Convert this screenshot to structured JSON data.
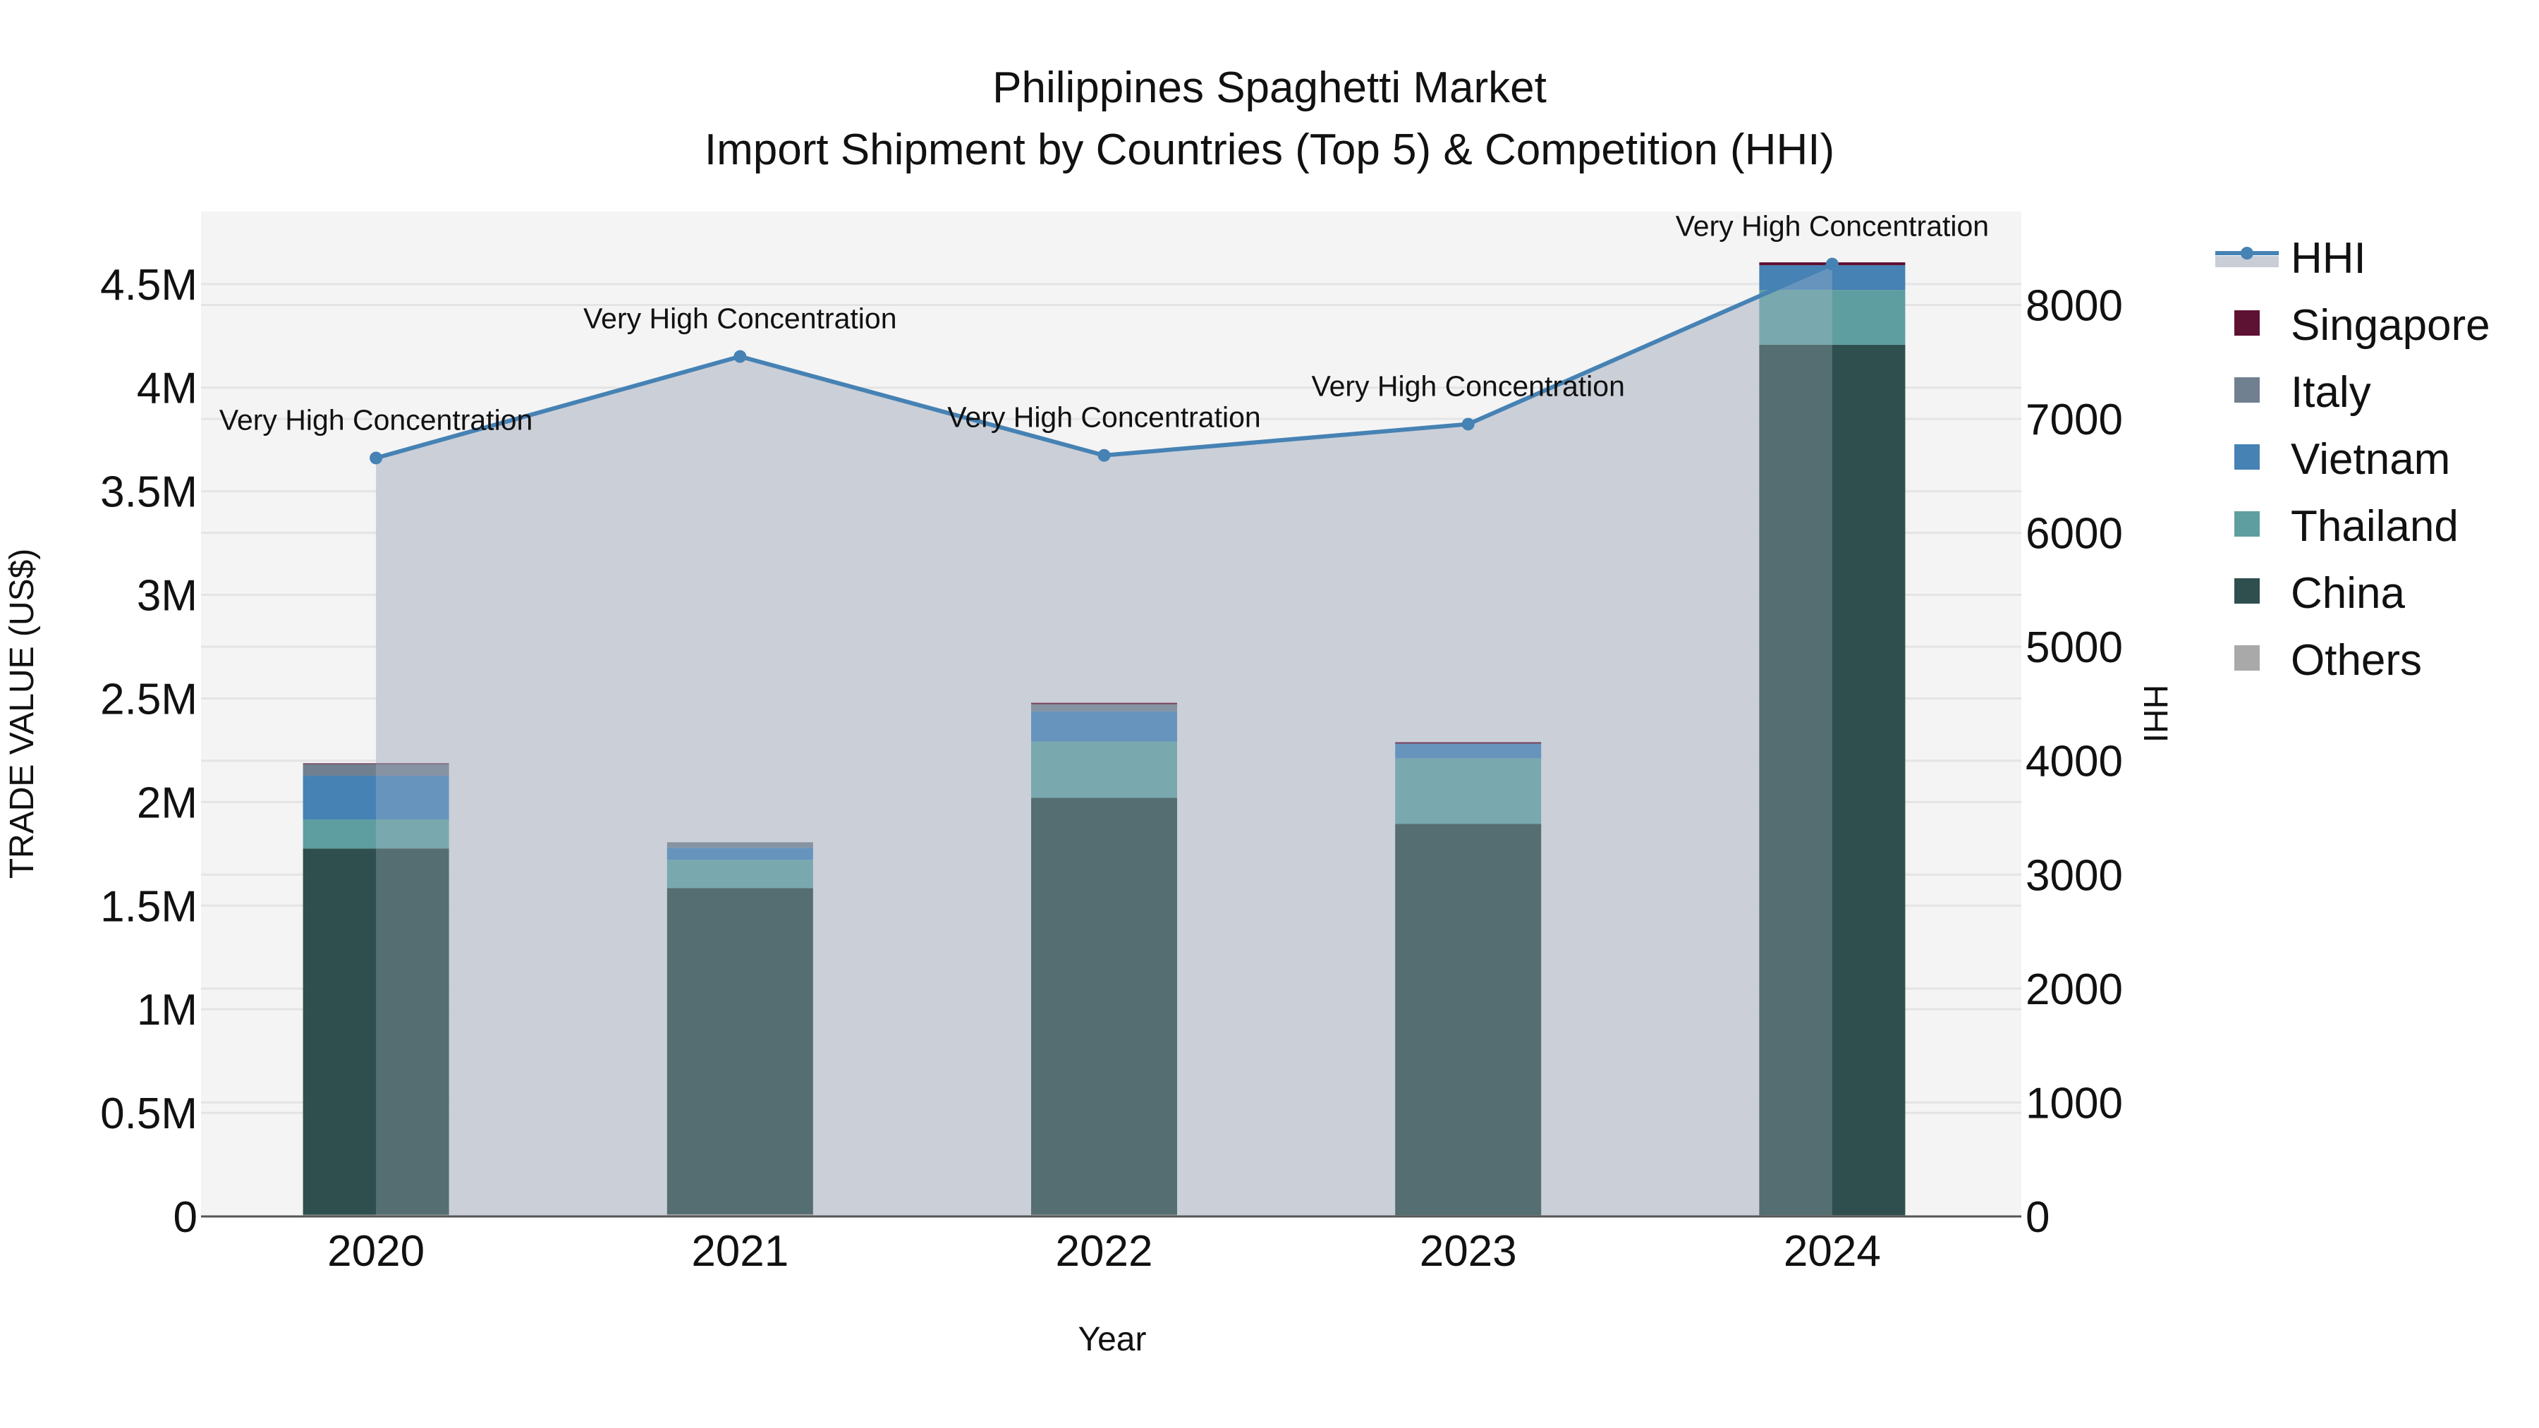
{
  "chart_data": {
    "type": "bar",
    "title": "Philippines Spaghetti Market",
    "subtitle": "Import Shipment by Countries (Top 5) & Competition (HHI)",
    "xlabel": "Year",
    "ylabel": "TRADE VALUE (US$)",
    "y2label": "HHI",
    "barmode": "stack",
    "categories": [
      "2020",
      "2021",
      "2022",
      "2023",
      "2024"
    ],
    "ylim": [
      0,
      4850000
    ],
    "y2lim": [
      0,
      8820
    ],
    "yticks": [
      {
        "value": 0,
        "label": "0"
      },
      {
        "value": 500000,
        "label": "0.5M"
      },
      {
        "value": 1000000,
        "label": "1M"
      },
      {
        "value": 1500000,
        "label": "1.5M"
      },
      {
        "value": 2000000,
        "label": "2M"
      },
      {
        "value": 2500000,
        "label": "2.5M"
      },
      {
        "value": 3000000,
        "label": "3M"
      },
      {
        "value": 3500000,
        "label": "3.5M"
      },
      {
        "value": 4000000,
        "label": "4M"
      },
      {
        "value": 4500000,
        "label": "4.5M"
      }
    ],
    "y2ticks": [
      {
        "value": 0,
        "label": "0"
      },
      {
        "value": 1000,
        "label": "1000"
      },
      {
        "value": 2000,
        "label": "2000"
      },
      {
        "value": 3000,
        "label": "3000"
      },
      {
        "value": 4000,
        "label": "4000"
      },
      {
        "value": 5000,
        "label": "5000"
      },
      {
        "value": 6000,
        "label": "6000"
      },
      {
        "value": 7000,
        "label": "7000"
      },
      {
        "value": 8000,
        "label": "8000"
      }
    ],
    "grid": true,
    "legend_position": "right",
    "series": [
      {
        "name": "Others",
        "color": "#a9a9a9",
        "values": [
          8000,
          10000,
          8000,
          6000,
          6000
        ]
      },
      {
        "name": "China",
        "color": "#2f4f4f",
        "values": [
          1768000,
          1575000,
          2012000,
          1889000,
          4201000
        ]
      },
      {
        "name": "Thailand",
        "color": "#5f9ea0",
        "values": [
          140000,
          136000,
          272000,
          316000,
          265000
        ]
      },
      {
        "name": "Vietnam",
        "color": "#4682b4",
        "values": [
          211000,
          58000,
          146000,
          71000,
          119000
        ]
      },
      {
        "name": "Italy",
        "color": "#708090",
        "values": [
          57000,
          27000,
          34000,
          0,
          0
        ]
      },
      {
        "name": "Singapore",
        "color": "#5e1233",
        "values": [
          3000,
          0,
          7000,
          7000,
          14000
        ]
      }
    ],
    "line_series": {
      "name": "HHI",
      "axis": "y2",
      "color": "#4682b4",
      "fill_color": "#c8cdd6",
      "values": [
        6657,
        7548,
        6680,
        6954,
        8359
      ],
      "annotations": [
        "Very High Concentration",
        "Very High Concentration",
        "Very High Concentration",
        "Very High Concentration",
        "Very High Concentration"
      ]
    }
  },
  "legend": {
    "items": [
      {
        "name": "HHI",
        "type": "line"
      },
      {
        "name": "Singapore",
        "color": "#5e1233"
      },
      {
        "name": "Italy",
        "color": "#708090"
      },
      {
        "name": "Vietnam",
        "color": "#4682b4"
      },
      {
        "name": "Thailand",
        "color": "#5f9ea0"
      },
      {
        "name": "China",
        "color": "#2f4f4f"
      },
      {
        "name": "Others",
        "color": "#a9a9a9"
      }
    ]
  },
  "colors": {
    "plot_bg": "#f4f4f4",
    "grid": "#e4e4e4",
    "axis_line": "#555555",
    "hhi_fill": "#c8cdd6",
    "hhi_line": "#4682b4"
  }
}
